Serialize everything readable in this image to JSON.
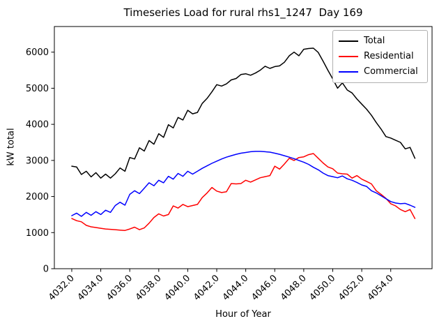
{
  "chart_data": {
    "type": "line",
    "title": "Timeseries Load for rural rhs1_1247  Day 169",
    "xlabel": "Hour of Year",
    "ylabel": "kW total",
    "grid": false,
    "legend_position": "upper right",
    "xlim": [
      4030.8,
      4056.85
    ],
    "ylim": [
      0,
      6710
    ],
    "x_ticks": [
      4032,
      4034,
      4036,
      4038,
      4040,
      4042,
      4044,
      4046,
      4048,
      4050,
      4052,
      4054
    ],
    "x_tick_decimals": 1,
    "x_tick_rotation": 45,
    "y_ticks": [
      0,
      1000,
      2000,
      3000,
      4000,
      5000,
      6000
    ],
    "x_start": 4032.0,
    "x_step": 0.333333,
    "series": [
      {
        "name": "Total",
        "color": "#000000",
        "values": [
          2840,
          2820,
          2610,
          2700,
          2545,
          2660,
          2510,
          2620,
          2510,
          2630,
          2790,
          2700,
          3080,
          3040,
          3350,
          3260,
          3550,
          3450,
          3740,
          3640,
          3990,
          3900,
          4190,
          4120,
          4390,
          4290,
          4330,
          4580,
          4720,
          4900,
          5100,
          5060,
          5120,
          5230,
          5270,
          5380,
          5400,
          5360,
          5420,
          5500,
          5610,
          5550,
          5600,
          5620,
          5720,
          5900,
          6000,
          5900,
          6080,
          6100,
          6110,
          5990,
          5750,
          5500,
          5260,
          5000,
          5150,
          4950,
          4870,
          4700,
          4560,
          4420,
          4250,
          4050,
          3870,
          3660,
          3620,
          3560,
          3500,
          3320,
          3360,
          3060
        ]
      },
      {
        "name": "Residential",
        "color": "#ff0000",
        "values": [
          1390,
          1330,
          1300,
          1200,
          1160,
          1140,
          1120,
          1100,
          1090,
          1080,
          1070,
          1060,
          1100,
          1150,
          1080,
          1130,
          1260,
          1420,
          1520,
          1460,
          1500,
          1740,
          1680,
          1780,
          1720,
          1750,
          1780,
          1970,
          2100,
          2250,
          2150,
          2110,
          2130,
          2360,
          2350,
          2360,
          2450,
          2400,
          2460,
          2520,
          2550,
          2580,
          2840,
          2760,
          2900,
          3060,
          3000,
          3080,
          3100,
          3160,
          3190,
          3060,
          2930,
          2820,
          2770,
          2650,
          2630,
          2620,
          2510,
          2580,
          2480,
          2420,
          2350,
          2160,
          2060,
          1950,
          1800,
          1740,
          1640,
          1580,
          1640,
          1390
        ]
      },
      {
        "name": "Commercial",
        "color": "#0000ff",
        "values": [
          1470,
          1540,
          1450,
          1560,
          1480,
          1580,
          1500,
          1620,
          1560,
          1750,
          1840,
          1760,
          2060,
          2160,
          2080,
          2230,
          2380,
          2300,
          2450,
          2380,
          2560,
          2480,
          2640,
          2560,
          2700,
          2620,
          2700,
          2780,
          2850,
          2920,
          2980,
          3040,
          3090,
          3130,
          3170,
          3200,
          3220,
          3240,
          3250,
          3250,
          3240,
          3230,
          3200,
          3170,
          3130,
          3090,
          3050,
          3000,
          2950,
          2890,
          2810,
          2740,
          2650,
          2580,
          2550,
          2520,
          2570,
          2490,
          2450,
          2390,
          2320,
          2280,
          2160,
          2100,
          2020,
          1940,
          1860,
          1820,
          1800,
          1810,
          1760,
          1700
        ]
      }
    ]
  }
}
